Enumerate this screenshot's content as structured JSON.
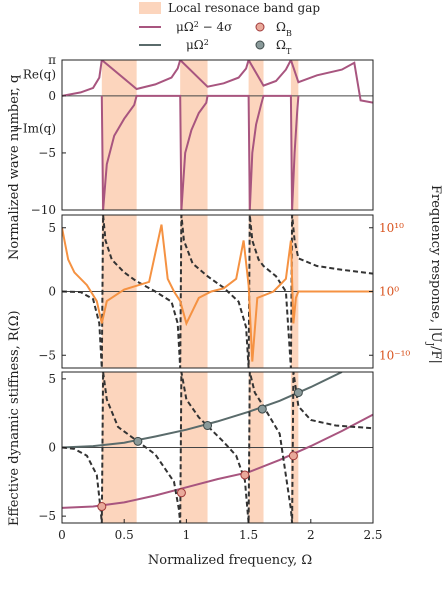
{
  "chart_data": [
    {
      "type": "line",
      "panel": "top",
      "ylabel": "Normalized wave number, q",
      "y_tick_labels": [
        "π",
        "0",
        "−5",
        "−10"
      ],
      "annotations": [
        "Re(q)",
        "−Im(q)"
      ],
      "xlim": [
        0,
        2.5
      ],
      "ylim": [
        -10,
        3.1416
      ],
      "band_gaps": [
        [
          0.32,
          0.6
        ],
        [
          0.95,
          1.17
        ],
        [
          1.5,
          1.62
        ],
        [
          1.84,
          1.9
        ]
      ],
      "series": [
        {
          "name": "Re(q)",
          "color": "#a8557f",
          "x": [
            0.0,
            0.15,
            0.25,
            0.3,
            0.32,
            0.6,
            0.75,
            0.88,
            0.93,
            0.95,
            1.17,
            1.3,
            1.42,
            1.48,
            1.5,
            1.62,
            1.72,
            1.8,
            1.84,
            1.9,
            2.05,
            2.25,
            2.35,
            2.4,
            2.5
          ],
          "y": [
            0.0,
            0.3,
            0.7,
            1.6,
            3.14,
            0.6,
            1.0,
            1.6,
            2.4,
            3.14,
            0.8,
            1.1,
            1.6,
            2.4,
            3.14,
            0.9,
            1.3,
            2.3,
            3.14,
            1.2,
            1.8,
            2.3,
            2.9,
            -0.4,
            -0.6
          ]
        },
        {
          "name": "−Im(q)",
          "color": "#a8557f",
          "x": [
            0.32,
            0.33,
            0.36,
            0.42,
            0.5,
            0.58,
            0.6,
            0.95,
            0.96,
            0.99,
            1.04,
            1.1,
            1.16,
            1.17,
            1.5,
            1.51,
            1.53,
            1.56,
            1.6,
            1.62,
            1.84,
            1.85,
            1.87,
            1.89,
            1.9
          ],
          "y": [
            0,
            -10,
            -6,
            -3.5,
            -2,
            -0.8,
            0,
            0,
            -10,
            -5,
            -3,
            -1.5,
            -0.6,
            0,
            0,
            -10,
            -5,
            -2.5,
            -0.8,
            0,
            0,
            -10,
            -5,
            -1.5,
            0
          ]
        }
      ]
    },
    {
      "type": "line",
      "panel": "middle",
      "ylabel": "Effective dynamic stiffness, R(Ω)",
      "ylabel_right": "Frequency response, |U_J/F|",
      "y_tick_labels": [
        "5",
        "0",
        "−5"
      ],
      "y2_tick_labels": [
        "10¹⁰",
        "10⁰",
        "10⁻¹⁰"
      ],
      "xlim": [
        0,
        2.5
      ],
      "ylim": [
        -6,
        6
      ],
      "y2lim_log10": [
        -12,
        12
      ],
      "series": [
        {
          "name": "R(Ω)",
          "color": "#333333",
          "style": "dashed",
          "x": [
            0.0,
            0.15,
            0.25,
            0.3,
            0.32,
            0.33,
            0.35,
            0.4,
            0.5,
            0.6,
            0.75,
            0.88,
            0.93,
            0.95,
            0.96,
            0.98,
            1.05,
            1.17,
            1.3,
            1.42,
            1.48,
            1.5,
            1.51,
            1.53,
            1.58,
            1.62,
            1.72,
            1.8,
            1.84,
            1.85,
            1.87,
            1.9,
            2.05,
            2.25,
            2.5
          ],
          "y": [
            0.0,
            -0.05,
            -0.6,
            -2.5,
            -6,
            6,
            4,
            2.5,
            1.5,
            0.8,
            0.0,
            -0.8,
            -2.5,
            -6,
            6,
            4,
            2.2,
            1.2,
            0.3,
            -0.8,
            -2.8,
            -6,
            6,
            4,
            2.5,
            2.0,
            1.2,
            0.0,
            -6,
            6,
            4,
            2.6,
            2.0,
            1.7,
            1.4
          ]
        },
        {
          "name": "|U_J/F|",
          "color": "#f59242",
          "axis": "right",
          "x": [
            0.0,
            0.05,
            0.1,
            0.2,
            0.28,
            0.32,
            0.36,
            0.5,
            0.7,
            0.8,
            0.85,
            0.9,
            0.95,
            1.0,
            1.1,
            1.2,
            1.3,
            1.4,
            1.46,
            1.5,
            1.53,
            1.57,
            1.7,
            1.8,
            1.84,
            1.86,
            1.88,
            1.9,
            2.1,
            2.5
          ],
          "y_log10": [
            10.0,
            5.0,
            3.0,
            1.0,
            -1.5,
            -5.0,
            -1.5,
            0.3,
            1.5,
            10.5,
            2.0,
            0.0,
            -1.5,
            -5.0,
            -1.0,
            0.0,
            0.5,
            2.0,
            8.0,
            1.0,
            -11.0,
            -1.0,
            0.0,
            2.0,
            8.0,
            -5.0,
            -1.0,
            0.0,
            0.0,
            0.0
          ]
        }
      ]
    },
    {
      "type": "line",
      "panel": "bottom",
      "ylabel": "Effective dynamic stiffness, R(Ω)",
      "xlabel": "Normalized frequency, Ω",
      "x_tick_labels": [
        "0",
        "0.5",
        "1",
        "1.5",
        "2",
        "2.5"
      ],
      "y_tick_labels": [
        "5",
        "0",
        "−5"
      ],
      "xlim": [
        0,
        2.5
      ],
      "ylim": [
        -5.5,
        5.5
      ],
      "series": [
        {
          "name": "μΩ² − 4σ",
          "color": "#a8557f",
          "x": [
            0.0,
            0.25,
            0.5,
            0.75,
            1.0,
            1.25,
            1.5,
            1.75,
            2.0,
            2.25,
            2.5
          ],
          "y": [
            -4.4,
            -4.3,
            -4.0,
            -3.5,
            -2.9,
            -2.3,
            -1.8,
            -0.9,
            0.1,
            1.2,
            2.4
          ]
        },
        {
          "name": "μΩ²",
          "color": "#5a6b6b",
          "x": [
            0.0,
            0.25,
            0.5,
            0.75,
            1.0,
            1.25,
            1.5,
            1.75,
            2.0,
            2.25
          ],
          "y": [
            0.0,
            0.1,
            0.35,
            0.8,
            1.3,
            1.9,
            2.6,
            3.4,
            4.4,
            5.5
          ]
        },
        {
          "name": "R(Ω)",
          "color": "#333333",
          "style": "dashed",
          "x": [
            0.0,
            0.1,
            0.2,
            0.28,
            0.31,
            0.32,
            0.33,
            0.36,
            0.45,
            0.6,
            0.75,
            0.9,
            0.94,
            0.95,
            0.96,
            1.0,
            1.1,
            1.2,
            1.3,
            1.4,
            1.47,
            1.49,
            1.5,
            1.51,
            1.55,
            1.62,
            1.75,
            1.84,
            1.85,
            1.86,
            1.9,
            2.0,
            2.2,
            2.5
          ],
          "y": [
            0.0,
            -0.1,
            -0.6,
            -2.0,
            -4.5,
            -5.5,
            5.5,
            3.5,
            1.5,
            0.5,
            -0.5,
            -2.5,
            -4.5,
            -5.5,
            5.5,
            3.5,
            2.2,
            1.3,
            0.4,
            -0.6,
            -2.4,
            -4.5,
            -5.5,
            5.5,
            4.0,
            3.0,
            1.0,
            -4.5,
            -5.5,
            5.5,
            3.0,
            2.0,
            1.6,
            1.4
          ]
        }
      ],
      "markers": {
        "omega_B": {
          "name": "Ω_B",
          "color": "#e9a99a",
          "edge": "#a03a3a",
          "x": [
            0.32,
            0.96,
            1.47,
            1.86
          ],
          "y": [
            -4.3,
            -3.3,
            -2.0,
            -0.6
          ]
        },
        "omega_T": {
          "name": "Ω_T",
          "color": "#8a9a9a",
          "edge": "#3e4a4a",
          "x": [
            0.61,
            1.17,
            1.61,
            1.9
          ],
          "y": [
            0.45,
            1.6,
            2.8,
            4.0
          ]
        }
      }
    }
  ],
  "legend": {
    "placement": "top",
    "items": [
      {
        "label": "Local resonace band gap",
        "kind": "band"
      },
      {
        "label": "μΩ² − 4σ",
        "kind": "line",
        "color": "#a8557f"
      },
      {
        "label": "Ω_B",
        "kind": "marker",
        "color": "#e9a99a"
      },
      {
        "label": "μΩ²",
        "kind": "line",
        "color": "#5a6b6b"
      },
      {
        "label": "Ω_T",
        "kind": "marker",
        "color": "#8a9a9a"
      }
    ]
  },
  "colors": {
    "band": "#fcd5bd",
    "frame": "#222222"
  }
}
